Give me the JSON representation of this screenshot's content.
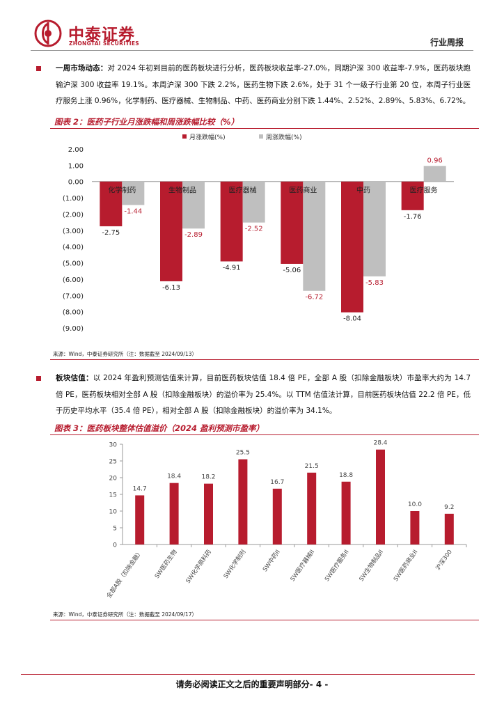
{
  "header": {
    "logo_cn": "中泰证券",
    "logo_en": "ZHONGTAI SECURITIES",
    "report_type": "行业周报"
  },
  "para1": {
    "label": "一周市场动态：",
    "text": "对 2024 年初到目前的医药板块进行分析，医药板块收益率-27.0%，同期沪深 300 收益率-7.9%，医药板块跑输沪深 300 收益率 19.1%。本周沪深 300 下跌 2.2%，医药生物下跌 2.6%，处于 31 个一级子行业第 20 位，本周子行业医疗服务上涨 0.96%，化学制药、医疗器械、生物制品、中药、医药商业分别下跌 1.44%、2.52%、2.89%、5.83%、6.72%。"
  },
  "figure2": {
    "title": "图表 2：医药子行业月涨跌幅和周涨跌幅比较（%）",
    "source": "来源：Wind，中泰证券研究所（注：数据截至 2024/09/13）"
  },
  "para2": {
    "label": "板块估值：",
    "text": "以 2024 年盈利预测估值来计算，目前医药板块估值 18.4 倍 PE，全部 A 股（扣除金融板块）市盈率大约为 14.7 倍 PE，医药板块相对全部 A 股（扣除金融板块）的溢价率为 25.4%。以 TTM 估值法计算，目前医药板块估值 22.2 倍 PE，低于历史平均水平（35.4 倍 PE），相对全部 A 股（扣除金融板块）的溢价率为 34.1%。"
  },
  "figure3": {
    "title": "图表 3：医药板块整体估值溢价（2024 盈利预测市盈率）",
    "source": "来源：Wind，中泰证券研究所（注：数据截至 2024/09/17）"
  },
  "footer": {
    "text": "请务必阅读正文之后的重要声明部分- 4 -"
  },
  "colors": {
    "brand": "#b71c2e",
    "gray": "#bfbfbf"
  },
  "chart_data": [
    {
      "type": "bar",
      "title": "医药子行业月涨跌幅和周涨跌幅比较（%）",
      "categories": [
        "化学制药",
        "生物制品",
        "医疗器械",
        "医药商业",
        "中药",
        "医疗服务"
      ],
      "series": [
        {
          "name": "月涨跌幅(%)",
          "values": [
            -2.75,
            -6.13,
            -4.91,
            -5.06,
            -8.04,
            -1.76
          ]
        },
        {
          "name": "周涨跌幅(%)",
          "values": [
            -1.44,
            -2.89,
            -2.52,
            -6.72,
            -5.83,
            0.96
          ]
        }
      ],
      "yticks": [
        "2.00",
        "1.00",
        "0.00",
        "(1.00)",
        "(2.00)",
        "(3.00)",
        "(4.00)",
        "(5.00)",
        "(6.00)",
        "(7.00)",
        "(8.00)",
        "(9.00)"
      ],
      "ylim": [
        -9,
        2
      ],
      "legend": "top",
      "grid": false
    },
    {
      "type": "bar",
      "title": "医药板块整体估值溢价（2024 盈利预测市盈率）",
      "categories": [
        "全部A股（扣除金融）",
        "SW医药生物",
        "SW化学原料药",
        "SW化学制剂",
        "SW中药II",
        "SW医疗器械II",
        "SW医疗服务II",
        "SW生物制品II",
        "SW医药商业II",
        "沪深300"
      ],
      "values": [
        14.7,
        18.4,
        18.2,
        25.5,
        16.7,
        21.5,
        18.8,
        28.4,
        10.0,
        9.2
      ],
      "value_labels": [
        "14.7",
        "18.4",
        "18.2",
        "25.5",
        "16.7",
        "21.5",
        "18.8",
        "28.4",
        "10.0",
        "9.2"
      ],
      "yticks": [
        "0",
        "5",
        "10",
        "15",
        "20",
        "25",
        "30"
      ],
      "ylim": [
        0,
        30
      ],
      "grid": false
    }
  ]
}
